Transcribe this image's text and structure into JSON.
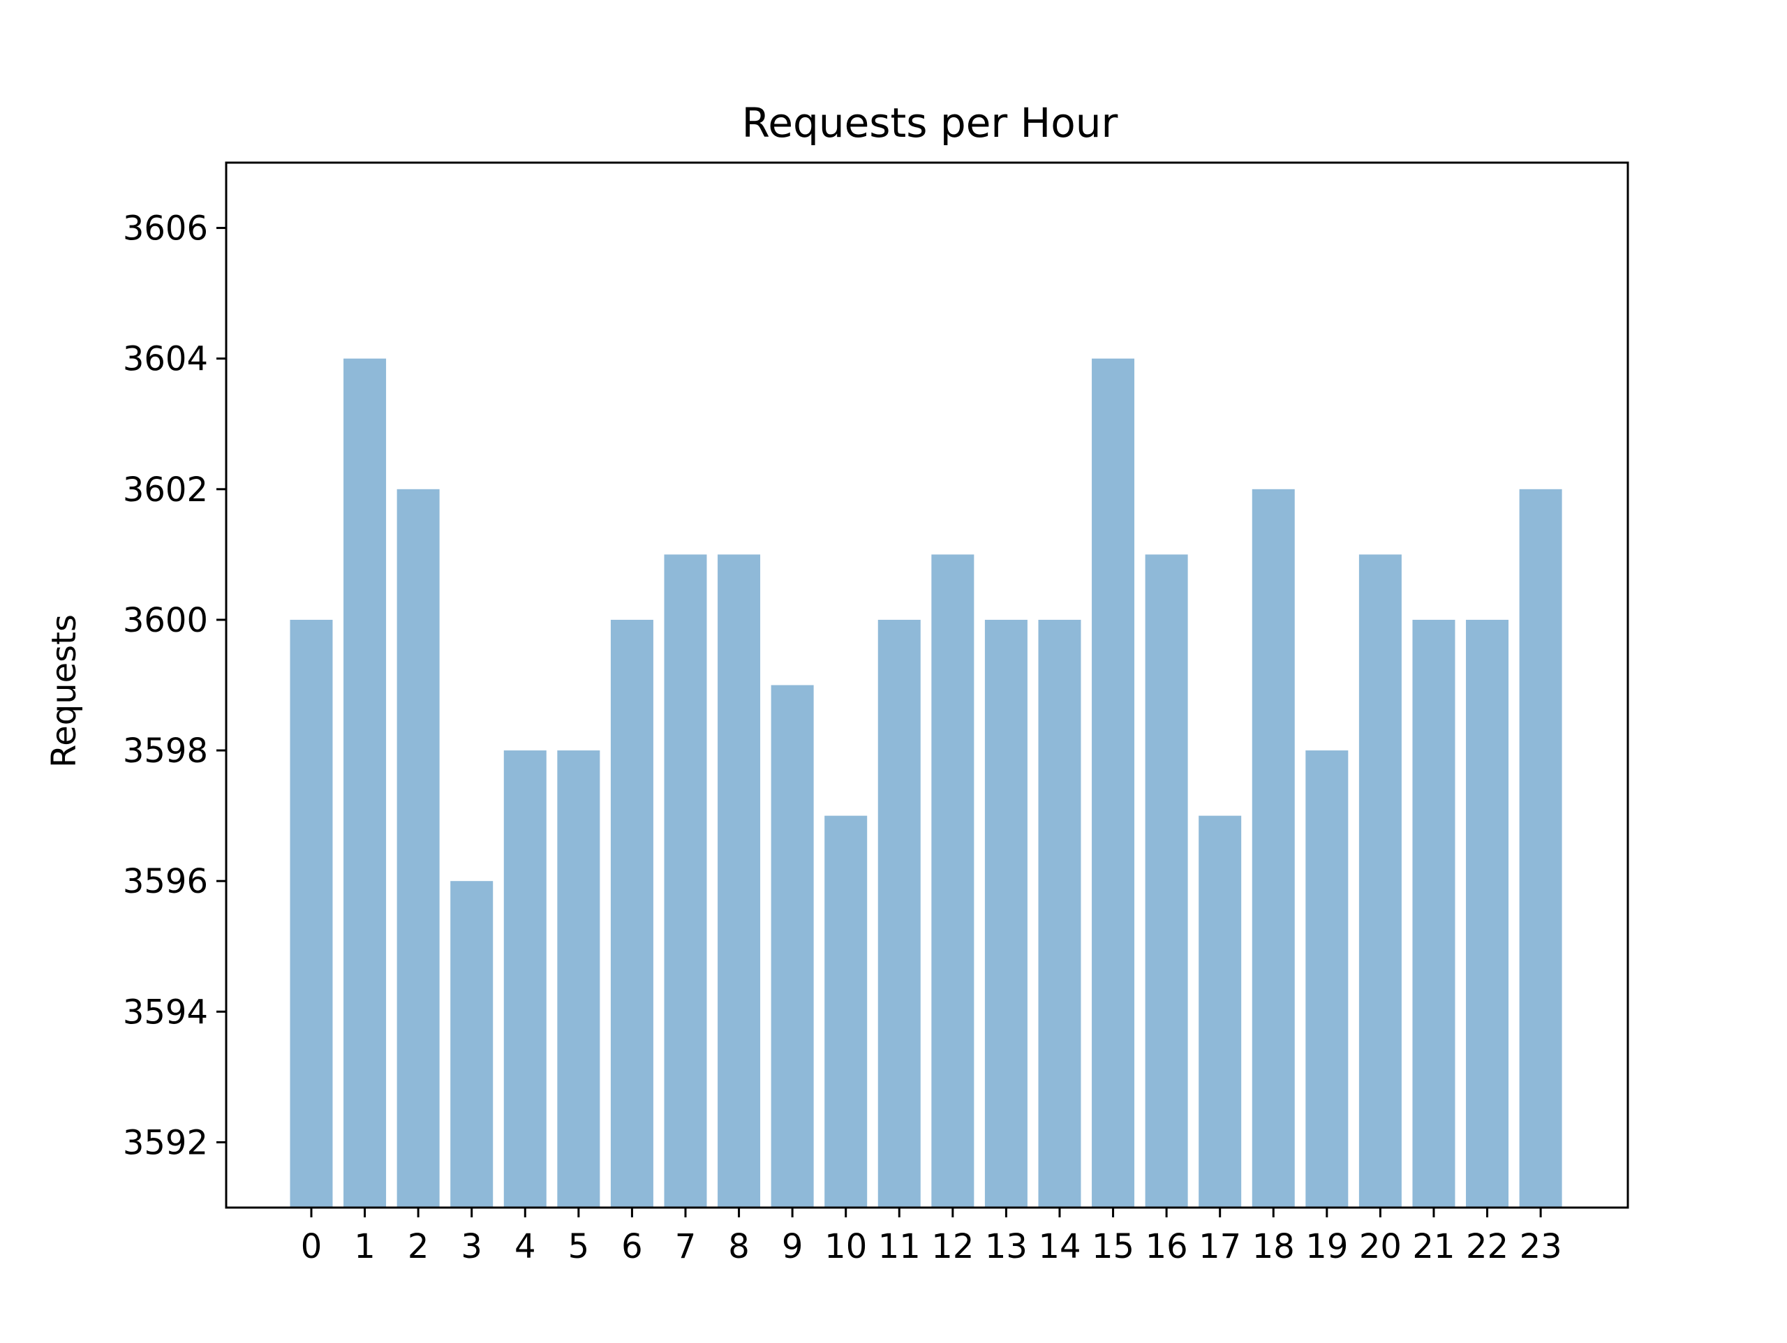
{
  "chart_data": {
    "type": "bar",
    "title": "Requests per Hour",
    "xlabel": "",
    "ylabel": "Requests",
    "categories": [
      "0",
      "1",
      "2",
      "3",
      "4",
      "5",
      "6",
      "7",
      "8",
      "9",
      "10",
      "11",
      "12",
      "13",
      "14",
      "15",
      "16",
      "17",
      "18",
      "19",
      "20",
      "21",
      "22",
      "23"
    ],
    "values": [
      3600,
      3604,
      3602,
      3596,
      3598,
      3598,
      3600,
      3601,
      3601,
      3599,
      3597,
      3600,
      3601,
      3600,
      3600,
      3604,
      3601,
      3597,
      3602,
      3598,
      3601,
      3600,
      3600,
      3602
    ],
    "ylim": [
      3591,
      3607
    ],
    "yticks": [
      "3592",
      "3594",
      "3596",
      "3598",
      "3600",
      "3602",
      "3604",
      "3606"
    ],
    "bar_color": "#8fb9d8",
    "grid": false,
    "legend": "none"
  }
}
